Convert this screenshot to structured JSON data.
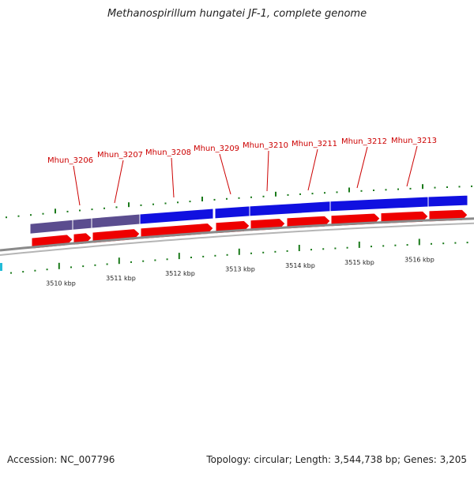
{
  "title": "Methanospirillum hungatei JF-1, complete genome",
  "footer": {
    "accession": "Accession: NC_007796",
    "summary": "Topology: circular; Length: 3,544,738 bp; Genes: 3,205"
  },
  "genes": [
    {
      "label": "Mhun_3206",
      "track": "forward",
      "color": "#5b4d8f"
    },
    {
      "label": "Mhun_3207",
      "track": "forward",
      "color": "#5b4d8f"
    },
    {
      "label": "Mhun_3208",
      "track": "forward",
      "color": "#5b4d8f"
    },
    {
      "label": "Mhun_3209",
      "track": "forward",
      "color": "#1010e0"
    },
    {
      "label": "Mhun_3210",
      "track": "forward",
      "color": "#1010e0"
    },
    {
      "label": "Mhun_3211",
      "track": "forward",
      "color": "#1010e0"
    },
    {
      "label": "Mhun_3212",
      "track": "forward",
      "color": "#1010e0"
    },
    {
      "label": "Mhun_3213",
      "track": "forward",
      "color": "#1010e0"
    }
  ],
  "ruler_labels": [
    "3510 kbp",
    "3511 kbp",
    "3512 kbp",
    "3513 kbp",
    "3514 kbp",
    "3515 kbp",
    "3516 kbp"
  ],
  "colors": {
    "label_red": "#cc0000",
    "cds_red": "#ee0000",
    "tick_green": "#1a7a1a",
    "backbone": "#8a8a8a",
    "edge_cyan": "#22bcd8"
  }
}
